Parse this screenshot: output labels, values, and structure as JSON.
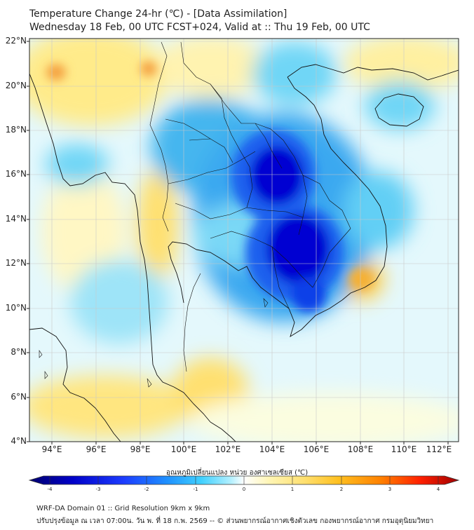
{
  "header": {
    "title_line1": "Temperature Change 24-hr (℃) - [Data Assimilation]",
    "title_line2": "Wednesday 18 Feb, 00 UTC FCST+024, Valid at :: Thu 19 Feb, 00 UTC"
  },
  "map": {
    "lat_labels": [
      "22°N",
      "20°N",
      "18°N",
      "16°N",
      "14°N",
      "12°N",
      "10°N",
      "8°N",
      "6°N",
      "4°N"
    ],
    "lon_labels": [
      "94°E",
      "96°E",
      "98°E",
      "100°E",
      "102°E",
      "104°E",
      "106°E",
      "108°E",
      "110°E",
      "112°E"
    ],
    "lat_range": [
      4,
      22
    ],
    "lon_range": [
      93,
      112.5
    ],
    "cold_core_value": -3.2,
    "warm_spot_values": [
      1.9,
      1.9,
      1.6,
      1.2
    ]
  },
  "colorbar": {
    "label": "อุณหภูมิเปลี่ยนแปลง หน่วย องศาเซลเซียส (℃)",
    "ticks": [
      "-4",
      "-3",
      "-2",
      "-1",
      "0",
      "1",
      "2",
      "3",
      "4"
    ],
    "min": -4,
    "max": 4,
    "colors": [
      "#00006e",
      "#0000c8",
      "#1c3cff",
      "#1e90ff",
      "#40d0ff",
      "#b4f0ff",
      "#ffffff",
      "#fff5b4",
      "#ffe070",
      "#ffc020",
      "#ff8000",
      "#ff2000",
      "#a00000"
    ]
  },
  "footer": {
    "line1": "WRF-DA Domain 01 :: Grid Resolution 9km x 9km",
    "line2": "ปรับปรุงข้อมูล ณ เวลา 07:00น. วัน พ. ที่ 18 ก.พ. 2569 -- © ส่วนพยากรณ์อากาศเชิงตัวเลข กองพยากรณ์อากาศ กรมอุตุนิยมวิทยา"
  }
}
